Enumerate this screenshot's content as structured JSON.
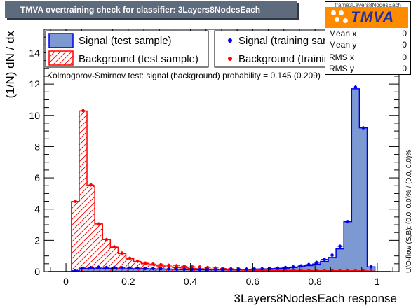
{
  "window": {
    "title": "TMVA overtraining check for classifier: 3Layers8NodesEach"
  },
  "stats_box": {
    "name": "frame3Layers8NodesEach",
    "rows": [
      {
        "label": "Mean x",
        "value": "0"
      },
      {
        "label": "Mean y",
        "value": "0"
      },
      {
        "label": "RMS x",
        "value": "0"
      },
      {
        "label": "RMS y",
        "value": "0"
      }
    ]
  },
  "logo": {
    "text": "TMVA"
  },
  "legend": {
    "signal_test": "Signal (test sample)",
    "background_test": "Background (test sample)",
    "signal_train": "Signal (training sample)",
    "background_train": "Background (training sample)"
  },
  "ks_text": "Kolmogorov-Smirnov test: signal (background) probability = 0.145 (0.209)",
  "overflow_text": "U/O-flow (S,B): (0.0, 0.0)% / (0.0, 0.0)%",
  "colors": {
    "signal_fill": "#7d99d1",
    "signal_line": "#0000ee",
    "background_line": "#ff0000",
    "title_bg": "#5d6b7d",
    "logo_bg": "#ff8c00",
    "logo_text": "#1f2fa8"
  },
  "chart_data": {
    "type": "histogram",
    "xlabel": "3Layers8NodesEach response",
    "ylabel": "(1/N) dN / dx",
    "xlim": [
      -0.07,
      1.07
    ],
    "ylim": [
      0,
      15.5
    ],
    "x_ticks": [
      0,
      0.2,
      0.4,
      0.6,
      0.8,
      1
    ],
    "x_tick_labels": [
      "0",
      "0.2",
      "0.4",
      "0.6",
      "0.8",
      "1"
    ],
    "y_ticks": [
      0,
      2,
      4,
      6,
      8,
      10,
      12,
      14
    ],
    "y_tick_labels": [
      "0",
      "2",
      "4",
      "6",
      "8",
      "10",
      "12",
      "14"
    ],
    "bins": {
      "start": -0.0575,
      "width": 0.025,
      "count": 44
    },
    "series": [
      {
        "name": "Signal (test sample)",
        "style": "filled_hist",
        "values": [
          0,
          0,
          0,
          0.05,
          0.18,
          0.2,
          0.2,
          0.2,
          0.2,
          0.18,
          0.18,
          0.18,
          0.17,
          0.16,
          0.16,
          0.15,
          0.14,
          0.13,
          0.13,
          0.12,
          0.12,
          0.12,
          0.12,
          0.13,
          0.13,
          0.14,
          0.15,
          0.16,
          0.17,
          0.19,
          0.22,
          0.26,
          0.3,
          0.38,
          0.48,
          0.65,
          0.9,
          1.45,
          3.2,
          11.7,
          9.2,
          0.3,
          0,
          0
        ]
      },
      {
        "name": "Background (test sample)",
        "style": "hatched_hist",
        "values": [
          0,
          0,
          0,
          4.48,
          10.28,
          5.5,
          3.05,
          2.05,
          1.55,
          1.15,
          0.82,
          0.62,
          0.5,
          0.42,
          0.36,
          0.3,
          0.26,
          0.23,
          0.2,
          0.18,
          0.16,
          0.14,
          0.12,
          0.11,
          0.1,
          0.09,
          0.09,
          0.08,
          0.08,
          0.07,
          0.07,
          0.06,
          0.06,
          0.06,
          0.05,
          0.05,
          0.05,
          0.05,
          0.05,
          0.05,
          0.04,
          0.02,
          0,
          0
        ]
      },
      {
        "name": "Signal (training sample)",
        "style": "points",
        "values": [
          0,
          0,
          0,
          0.05,
          0.22,
          0.25,
          0.27,
          0.26,
          0.25,
          0.24,
          0.23,
          0.22,
          0.2,
          0.19,
          0.18,
          0.17,
          0.16,
          0.15,
          0.14,
          0.13,
          0.13,
          0.13,
          0.13,
          0.14,
          0.14,
          0.15,
          0.17,
          0.18,
          0.2,
          0.22,
          0.26,
          0.3,
          0.36,
          0.45,
          0.58,
          0.78,
          1.05,
          1.62,
          3.2,
          11.8,
          9.2,
          0.3,
          0,
          0
        ]
      },
      {
        "name": "Background (training sample)",
        "style": "points",
        "values": [
          0,
          0,
          0,
          4.5,
          10.3,
          5.55,
          3.05,
          2.05,
          1.58,
          1.18,
          0.85,
          0.66,
          0.54,
          0.48,
          0.44,
          0.4,
          0.37,
          0.34,
          0.31,
          0.29,
          0.26,
          0.23,
          0.2,
          0.18,
          0.16,
          0.15,
          0.13,
          0.12,
          0.1,
          0.09,
          0.08,
          0.08,
          0.07,
          0.07,
          0.06,
          0.06,
          0.06,
          0.06,
          0.05,
          0.05,
          0.05,
          0.03,
          0,
          0
        ]
      }
    ]
  }
}
